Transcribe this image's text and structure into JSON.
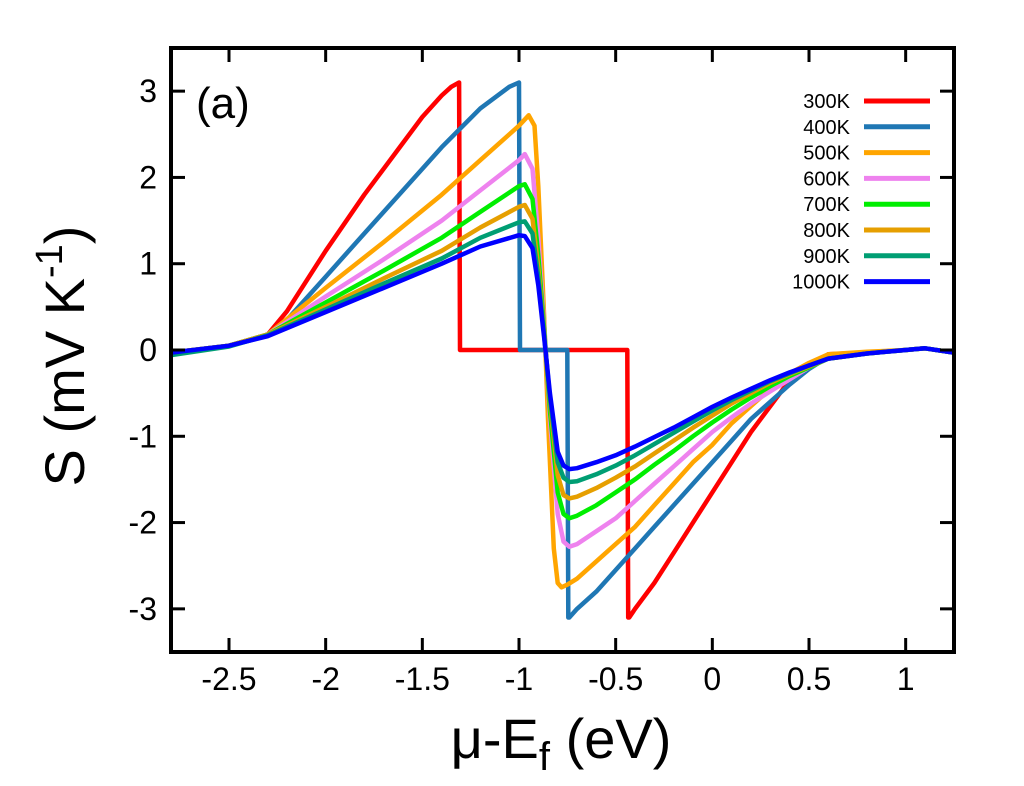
{
  "chart_data": {
    "type": "line",
    "panel_label": "(a)",
    "xlabel": "μ-E_f (eV)",
    "ylabel": "S (mV K^-1)",
    "xlim": [
      -2.8,
      1.25
    ],
    "ylim": [
      -3.5,
      3.5
    ],
    "xticks": [
      -2.5,
      -2,
      -1.5,
      -1,
      -0.5,
      0,
      0.5,
      1
    ],
    "xtick_labels": [
      "-2.5",
      "-2",
      "-1.5",
      "-1",
      "-0.5",
      "0",
      "0.5",
      "1"
    ],
    "yticks": [
      -3,
      -2,
      -1,
      0,
      1,
      2,
      3
    ],
    "ytick_labels": [
      "-3",
      "-2",
      "-1",
      "0",
      "1",
      "2",
      "3"
    ],
    "grid": false,
    "legend_position": "top-right",
    "series": [
      {
        "name": "300K",
        "color": "#ff0000",
        "x": [
          -2.8,
          -2.5,
          -2.3,
          -2.2,
          -2.0,
          -1.8,
          -1.6,
          -1.5,
          -1.4,
          -1.35,
          -1.31,
          -1.305,
          -1.3,
          -0.44,
          -0.435,
          -0.43,
          -0.4,
          -0.3,
          -0.2,
          -0.1,
          0.0,
          0.1,
          0.2,
          0.3,
          0.4,
          0.5,
          0.6,
          0.8,
          1.0,
          1.1,
          1.25
        ],
        "y": [
          -0.03,
          0.05,
          0.18,
          0.45,
          1.15,
          1.8,
          2.4,
          2.7,
          2.95,
          3.05,
          3.1,
          0.0,
          0.0,
          0.0,
          -3.1,
          -3.1,
          -3.0,
          -2.7,
          -2.35,
          -2.0,
          -1.65,
          -1.3,
          -0.95,
          -0.65,
          -0.35,
          -0.2,
          -0.05,
          -0.03,
          0.0,
          0.02,
          -0.03
        ]
      },
      {
        "name": "400K",
        "color": "#1f77b4",
        "x": [
          -2.8,
          -2.5,
          -2.3,
          -2.2,
          -2.0,
          -1.8,
          -1.6,
          -1.4,
          -1.2,
          -1.05,
          -1.0,
          -0.995,
          -0.99,
          -0.75,
          -0.745,
          -0.74,
          -0.7,
          -0.6,
          -0.5,
          -0.4,
          -0.3,
          -0.2,
          -0.1,
          0.0,
          0.1,
          0.2,
          0.3,
          0.4,
          0.5,
          0.6,
          0.8,
          1.0,
          1.1,
          1.25
        ],
        "y": [
          -0.03,
          0.05,
          0.18,
          0.35,
          0.85,
          1.35,
          1.85,
          2.35,
          2.8,
          3.05,
          3.1,
          0.0,
          0.0,
          0.0,
          -3.1,
          -3.1,
          -3.0,
          -2.8,
          -2.55,
          -2.3,
          -2.05,
          -1.8,
          -1.55,
          -1.3,
          -1.05,
          -0.8,
          -0.6,
          -0.4,
          -0.22,
          -0.08,
          -0.03,
          0.0,
          0.02,
          -0.03
        ]
      },
      {
        "name": "500K",
        "color": "#ffa500",
        "x": [
          -2.8,
          -2.5,
          -2.3,
          -2.0,
          -1.7,
          -1.4,
          -1.2,
          -1.0,
          -0.95,
          -0.92,
          -0.9,
          -0.87,
          -0.85,
          -0.82,
          -0.8,
          -0.78,
          -0.75,
          -0.7,
          -0.6,
          -0.5,
          -0.4,
          -0.3,
          -0.2,
          -0.1,
          0.0,
          0.1,
          0.2,
          0.3,
          0.4,
          0.5,
          0.6,
          0.8,
          1.0,
          1.1,
          1.25
        ],
        "y": [
          -0.03,
          0.05,
          0.18,
          0.72,
          1.25,
          1.8,
          2.2,
          2.6,
          2.72,
          2.6,
          1.9,
          0.4,
          -0.8,
          -2.3,
          -2.7,
          -2.75,
          -2.72,
          -2.65,
          -2.45,
          -2.25,
          -2.05,
          -1.8,
          -1.55,
          -1.3,
          -1.1,
          -0.85,
          -0.65,
          -0.45,
          -0.27,
          -0.15,
          -0.05,
          -0.02,
          0.0,
          0.02,
          -0.03
        ]
      },
      {
        "name": "600K",
        "color": "#ee82ee",
        "x": [
          -2.8,
          -2.5,
          -2.3,
          -2.0,
          -1.7,
          -1.4,
          -1.2,
          -1.0,
          -0.97,
          -0.93,
          -0.9,
          -0.87,
          -0.84,
          -0.8,
          -0.77,
          -0.74,
          -0.7,
          -0.6,
          -0.5,
          -0.4,
          -0.3,
          -0.2,
          -0.1,
          0.0,
          0.1,
          0.2,
          0.3,
          0.4,
          0.5,
          0.6,
          0.8,
          1.0,
          1.1,
          1.25
        ],
        "y": [
          -0.03,
          0.05,
          0.18,
          0.62,
          1.05,
          1.5,
          1.85,
          2.2,
          2.27,
          2.1,
          1.3,
          0.3,
          -0.8,
          -1.9,
          -2.22,
          -2.28,
          -2.25,
          -2.1,
          -1.95,
          -1.75,
          -1.55,
          -1.35,
          -1.15,
          -0.95,
          -0.78,
          -0.62,
          -0.48,
          -0.34,
          -0.2,
          -0.1,
          -0.04,
          0.0,
          0.02,
          -0.03
        ]
      },
      {
        "name": "700K",
        "color": "#00ee00",
        "x": [
          -2.8,
          -2.5,
          -2.3,
          -2.0,
          -1.7,
          -1.4,
          -1.2,
          -1.0,
          -0.97,
          -0.93,
          -0.9,
          -0.87,
          -0.84,
          -0.8,
          -0.77,
          -0.74,
          -0.7,
          -0.6,
          -0.5,
          -0.4,
          -0.3,
          -0.2,
          -0.1,
          0.0,
          0.1,
          0.2,
          0.3,
          0.4,
          0.5,
          0.6,
          0.8,
          1.0,
          1.1,
          1.25
        ],
        "y": [
          -0.03,
          0.05,
          0.18,
          0.55,
          0.92,
          1.3,
          1.6,
          1.9,
          1.92,
          1.75,
          1.1,
          0.25,
          -0.7,
          -1.65,
          -1.9,
          -1.95,
          -1.92,
          -1.8,
          -1.65,
          -1.5,
          -1.33,
          -1.17,
          -1.0,
          -0.84,
          -0.69,
          -0.55,
          -0.42,
          -0.3,
          -0.2,
          -0.1,
          -0.04,
          0.0,
          0.02,
          -0.03
        ]
      },
      {
        "name": "800K",
        "color": "#e69f00",
        "x": [
          -2.8,
          -2.5,
          -2.3,
          -2.0,
          -1.7,
          -1.4,
          -1.2,
          -1.0,
          -0.97,
          -0.93,
          -0.9,
          -0.87,
          -0.84,
          -0.8,
          -0.77,
          -0.74,
          -0.7,
          -0.6,
          -0.5,
          -0.4,
          -0.3,
          -0.2,
          -0.1,
          0.0,
          0.1,
          0.2,
          0.3,
          0.4,
          0.5,
          0.6,
          0.8,
          1.0,
          1.1,
          1.25
        ],
        "y": [
          -0.03,
          0.05,
          0.18,
          0.5,
          0.83,
          1.15,
          1.42,
          1.66,
          1.68,
          1.52,
          0.95,
          0.2,
          -0.6,
          -1.45,
          -1.68,
          -1.72,
          -1.7,
          -1.6,
          -1.48,
          -1.35,
          -1.2,
          -1.05,
          -0.9,
          -0.76,
          -0.62,
          -0.5,
          -0.38,
          -0.28,
          -0.19,
          -0.1,
          -0.04,
          0.0,
          0.02,
          -0.03
        ]
      },
      {
        "name": "900K",
        "color": "#009e73",
        "x": [
          -2.8,
          -2.5,
          -2.3,
          -2.0,
          -1.7,
          -1.4,
          -1.2,
          -1.0,
          -0.97,
          -0.93,
          -0.9,
          -0.87,
          -0.84,
          -0.8,
          -0.77,
          -0.74,
          -0.7,
          -0.6,
          -0.5,
          -0.4,
          -0.3,
          -0.2,
          -0.1,
          0.0,
          0.1,
          0.2,
          0.3,
          0.4,
          0.5,
          0.6,
          0.8,
          1.0,
          1.1,
          1.25
        ],
        "y": [
          -0.06,
          0.04,
          0.17,
          0.47,
          0.77,
          1.06,
          1.3,
          1.48,
          1.49,
          1.35,
          0.85,
          0.18,
          -0.55,
          -1.3,
          -1.48,
          -1.53,
          -1.52,
          -1.44,
          -1.34,
          -1.22,
          -1.09,
          -0.96,
          -0.83,
          -0.7,
          -0.58,
          -0.47,
          -0.36,
          -0.27,
          -0.18,
          -0.1,
          -0.04,
          0.0,
          0.02,
          -0.03
        ]
      },
      {
        "name": "1000K",
        "color": "#0000ff",
        "x": [
          -2.8,
          -2.5,
          -2.3,
          -2.0,
          -1.7,
          -1.4,
          -1.2,
          -1.0,
          -0.97,
          -0.93,
          -0.9,
          -0.87,
          -0.84,
          -0.8,
          -0.77,
          -0.74,
          -0.7,
          -0.6,
          -0.5,
          -0.4,
          -0.3,
          -0.2,
          -0.1,
          0.0,
          0.1,
          0.2,
          0.3,
          0.4,
          0.5,
          0.6,
          0.8,
          1.0,
          1.1,
          1.25
        ],
        "y": [
          -0.03,
          0.05,
          0.16,
          0.44,
          0.72,
          1.0,
          1.2,
          1.33,
          1.32,
          1.18,
          0.75,
          0.15,
          -0.5,
          -1.18,
          -1.34,
          -1.38,
          -1.37,
          -1.3,
          -1.22,
          -1.12,
          -1.01,
          -0.9,
          -0.78,
          -0.66,
          -0.55,
          -0.45,
          -0.35,
          -0.26,
          -0.18,
          -0.1,
          -0.04,
          0.0,
          0.02,
          -0.03
        ]
      }
    ]
  }
}
